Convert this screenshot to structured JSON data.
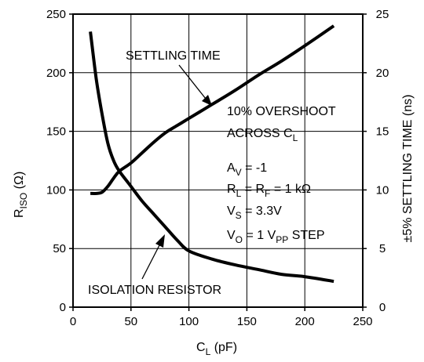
{
  "chart_data": {
    "type": "line",
    "xlabel": {
      "main": "C",
      "sub": "L",
      "unit": " (pF)"
    },
    "ylabel_left": {
      "main": "R",
      "sub": "ISO",
      "unit": " (Ω)"
    },
    "ylabel_right": "±5% SETTLING TIME (ns)",
    "xlim": [
      0,
      250
    ],
    "ylim_left": [
      0,
      250
    ],
    "ylim_right": [
      0,
      25
    ],
    "x_ticks": [
      "0",
      "50",
      "100",
      "150",
      "200",
      "250"
    ],
    "y_left_ticks": [
      "0",
      "50",
      "100",
      "150",
      "200",
      "250"
    ],
    "y_right_ticks": [
      "0",
      "5",
      "10",
      "15",
      "20",
      "25"
    ],
    "grid": true,
    "series": [
      {
        "name": "SETTLING TIME",
        "axis": "right",
        "x": [
          15,
          20,
          25,
          30,
          35,
          40,
          50,
          60,
          70,
          80,
          90,
          100,
          120,
          140,
          160,
          180,
          200,
          225
        ],
        "y": [
          9.7,
          9.7,
          9.8,
          10.3,
          11.0,
          11.6,
          12.3,
          13.2,
          14.1,
          14.9,
          15.5,
          16.1,
          17.3,
          18.5,
          19.8,
          21.0,
          22.3,
          24.0
        ]
      },
      {
        "name": "ISOLATION RESISTOR",
        "axis": "left",
        "x": [
          15,
          20,
          25,
          30,
          35,
          40,
          50,
          60,
          70,
          80,
          90,
          100,
          120,
          140,
          160,
          180,
          200,
          225
        ],
        "y": [
          235,
          195,
          165,
          140,
          125,
          116,
          103,
          90,
          79,
          68,
          57,
          48,
          41,
          36,
          32,
          28,
          26,
          22
        ]
      }
    ],
    "annotations": {
      "overshoot_line1": "10% OVERSHOOT",
      "overshoot_line2": {
        "main": "ACROSS C",
        "sub": "L"
      },
      "av": {
        "main": "A",
        "sub": "V",
        "rest": " = -1"
      },
      "rl": {
        "main": "R",
        "sub1": "L",
        "mid": " = R",
        "sub2": "F",
        "rest": " = 1 kΩ"
      },
      "vs": {
        "main": "V",
        "sub": "S",
        "rest": " = 3.3V"
      },
      "vo": {
        "main": "V",
        "sub1": "O",
        "mid": " = 1 V",
        "sub2": "PP",
        "rest": " STEP"
      }
    }
  }
}
